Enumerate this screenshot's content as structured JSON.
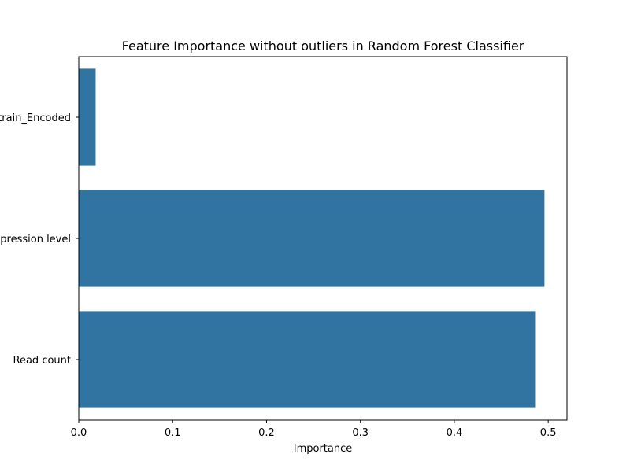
{
  "chart_data": {
    "type": "bar",
    "orientation": "horizontal",
    "title": "Feature Importance without outliers in Random Forest Classifier",
    "xlabel": "Importance",
    "ylabel": "",
    "categories": [
      "Strain_Encoded",
      "Expression level",
      "Read count"
    ],
    "values": [
      0.018,
      0.496,
      0.486
    ],
    "xlim": [
      0,
      0.52
    ],
    "xticks": [
      0,
      0.1,
      0.2,
      0.3,
      0.4,
      0.5
    ],
    "xtick_labels": [
      "0.0",
      "0.1",
      "0.2",
      "0.3",
      "0.4",
      "0.5"
    ],
    "bar_color": "#3274a1",
    "grid": false,
    "legend": "none"
  }
}
